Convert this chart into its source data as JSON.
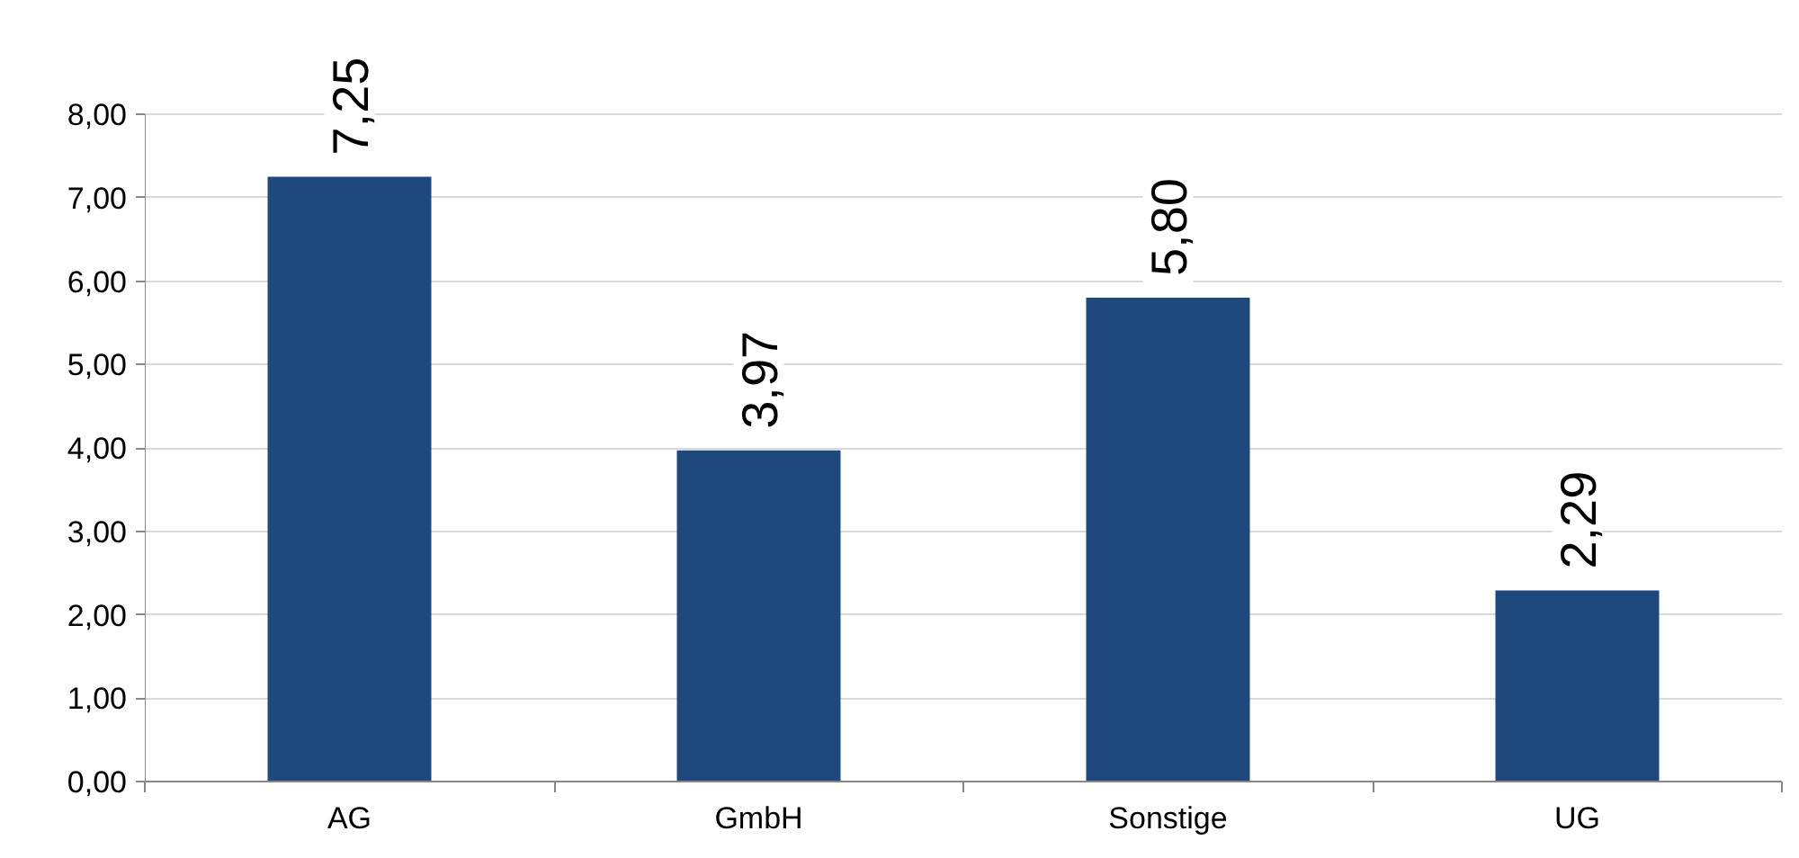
{
  "chart_data": {
    "type": "bar",
    "categories": [
      "AG",
      "GmbH",
      "Sonstige",
      "UG"
    ],
    "values": [
      7.25,
      3.97,
      5.8,
      2.29
    ],
    "color": "#1f497d",
    "value_labels": [
      "7,25",
      "3,97",
      "5,80",
      "2,29"
    ],
    "ylim": [
      0,
      8
    ],
    "yticks": [
      {
        "value": 0,
        "label": "0,00"
      },
      {
        "value": 1,
        "label": "1,00"
      },
      {
        "value": 2,
        "label": "2,00"
      },
      {
        "value": 3,
        "label": "3,00"
      },
      {
        "value": 4,
        "label": "4,00"
      },
      {
        "value": 5,
        "label": "5,00"
      },
      {
        "value": 6,
        "label": "6,00"
      },
      {
        "value": 7,
        "label": "7,00"
      },
      {
        "value": 8,
        "label": "8,00"
      }
    ],
    "grid": "y"
  }
}
